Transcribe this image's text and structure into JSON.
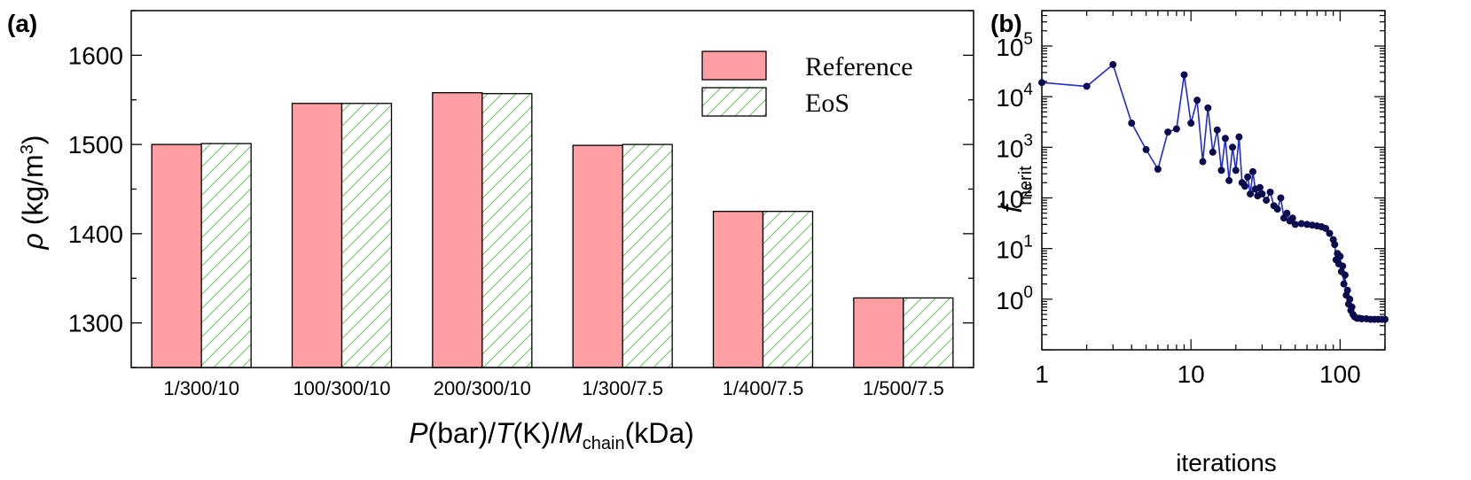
{
  "panel_a_label": "(a)",
  "panel_b_label": "(b)",
  "colors": {
    "reference_fill": "#ff9fa3",
    "eos_hatch": "#7dcc6e",
    "line_series": "#1f2bd6",
    "marker": "#0b0b4f"
  },
  "chart_data": [
    {
      "type": "bar",
      "panel": "(a)",
      "ylabel": {
        "symbol": "ρ",
        "text": " (kg/m",
        "sup": "3",
        "close": ")"
      },
      "xlabel": {
        "parts": [
          {
            "text": "P",
            "italic": true
          },
          {
            "text": "(bar)/",
            "italic": false
          },
          {
            "text": "T",
            "italic": true
          },
          {
            "text": "(K)/",
            "italic": false
          },
          {
            "text": "M",
            "italic": true
          },
          {
            "text": "chain",
            "sub": true
          },
          {
            "text": "(kDa)",
            "italic": false
          }
        ]
      },
      "categories": [
        "1/300/10",
        "100/300/10",
        "200/300/10",
        "1/300/7.5",
        "1/400/7.5",
        "1/500/7.5"
      ],
      "series": [
        {
          "name": "Reference",
          "values": [
            1500,
            1546,
            1558,
            1499,
            1425,
            1328
          ],
          "style": "solid"
        },
        {
          "name": "EoS",
          "values": [
            1501,
            1546,
            1557,
            1500,
            1425,
            1328
          ],
          "style": "hatched"
        }
      ],
      "ylim": [
        1250,
        1650
      ],
      "yticks": [
        1300,
        1400,
        1500,
        1600
      ],
      "legend": "top-right",
      "grid": false
    },
    {
      "type": "line",
      "panel": "(b)",
      "xlabel": "iterations",
      "ylabel": {
        "symbol": "f",
        "sub": "merit"
      },
      "xscale": "log",
      "yscale": "log",
      "xlim": [
        1,
        200
      ],
      "ylim": [
        0.1,
        500000
      ],
      "xticks": [
        {
          "value": 1,
          "label": "1"
        },
        {
          "value": 10,
          "label": "10"
        },
        {
          "value": 100,
          "label": "100"
        }
      ],
      "yticks": [
        {
          "value": 1,
          "base": "10",
          "exp": "0"
        },
        {
          "value": 10,
          "base": "10",
          "exp": "1"
        },
        {
          "value": 100,
          "base": "10",
          "exp": "2"
        },
        {
          "value": 1000,
          "base": "10",
          "exp": "3"
        },
        {
          "value": 10000,
          "base": "10",
          "exp": "4"
        },
        {
          "value": 100000,
          "base": "10",
          "exp": "5"
        }
      ],
      "grid": false,
      "x": [
        1,
        2,
        3,
        4,
        5,
        6,
        7,
        8,
        9,
        10,
        11,
        12,
        13,
        14,
        15,
        16,
        17,
        18,
        19,
        20,
        21,
        22,
        23,
        24,
        25,
        26,
        27,
        28,
        29,
        30,
        32,
        34,
        36,
        38,
        40,
        42,
        44,
        46,
        48,
        50,
        55,
        60,
        65,
        70,
        75,
        80,
        85,
        90,
        92,
        94,
        96,
        98,
        100,
        102,
        104,
        106,
        108,
        110,
        112,
        114,
        116,
        118,
        120,
        122,
        125,
        130,
        135,
        140,
        150,
        160,
        170,
        180,
        190,
        200
      ],
      "y": [
        19000,
        16000,
        43000,
        3000,
        900,
        370,
        2000,
        2300,
        27000,
        3000,
        8500,
        520,
        6000,
        800,
        2200,
        350,
        1500,
        220,
        1000,
        350,
        1600,
        200,
        170,
        260,
        120,
        330,
        150,
        110,
        160,
        120,
        90,
        130,
        70,
        60,
        100,
        40,
        50,
        35,
        40,
        30,
        31,
        30,
        29,
        28,
        27,
        25,
        20,
        15,
        12,
        6,
        8,
        5,
        7,
        3.5,
        4.5,
        2,
        3,
        1.2,
        1.5,
        0.8,
        1.0,
        0.6,
        0.7,
        0.5,
        0.45,
        0.42,
        0.42,
        0.41,
        0.41,
        0.4,
        0.4,
        0.4,
        0.4,
        0.4
      ]
    }
  ]
}
